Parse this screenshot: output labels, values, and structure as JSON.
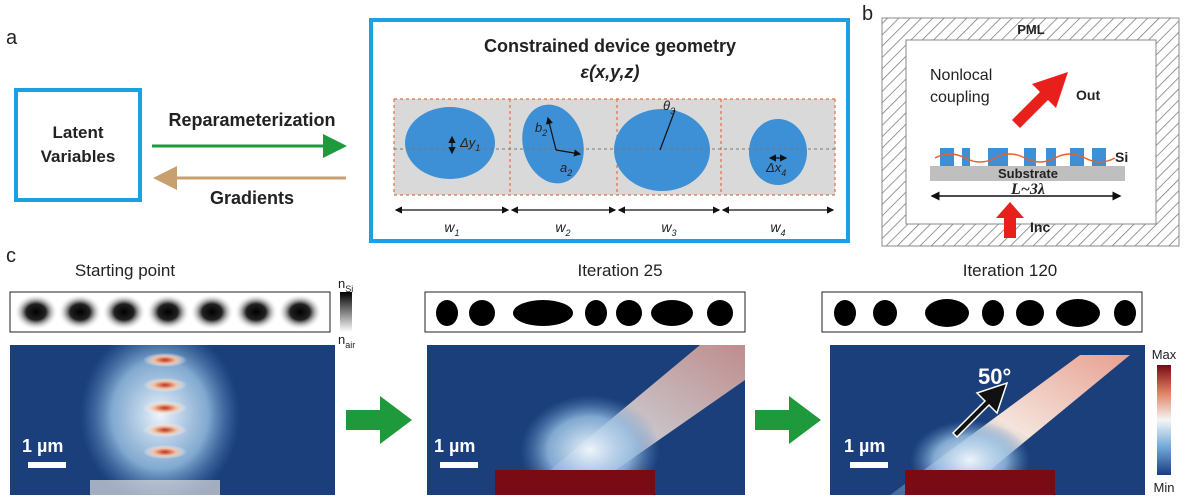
{
  "panel_labels": [
    "a",
    "b",
    "c"
  ],
  "panel_a": {
    "latent": [
      "Latent",
      "Variables"
    ],
    "forward": "Reparameterization",
    "backward": "Gradients",
    "geometry_title": "Constrained device geometry",
    "permittivity": "ε(x,y,z)",
    "params": [
      {
        "symbol": "Δy",
        "sub": "1"
      },
      {
        "symbol": "b",
        "sub": "2"
      },
      {
        "symbol": "a",
        "sub": "2"
      },
      {
        "symbol": "θ",
        "sub": "3"
      },
      {
        "symbol": "Δx",
        "sub": "4"
      }
    ],
    "widths": [
      {
        "symbol": "w",
        "sub": "1"
      },
      {
        "symbol": "w",
        "sub": "2"
      },
      {
        "symbol": "w",
        "sub": "3"
      },
      {
        "symbol": "w",
        "sub": "4"
      }
    ]
  },
  "panel_b": {
    "pml": "PML",
    "coupling": [
      "Nonlocal",
      "coupling"
    ],
    "out": "Out",
    "si": "Si",
    "substrate": "Substrate",
    "length": "L~3λ",
    "inc": "Inc"
  },
  "panel_c": {
    "titles": [
      "Starting point",
      "Iteration 25",
      "Iteration 120"
    ],
    "index_high": {
      "symbol": "n",
      "sub": "Si"
    },
    "index_low": {
      "symbol": "n",
      "sub": "air"
    },
    "scale_bar": "1 µm",
    "angle": "50°",
    "colorbar": {
      "max": "Max",
      "min": "Min"
    }
  }
}
